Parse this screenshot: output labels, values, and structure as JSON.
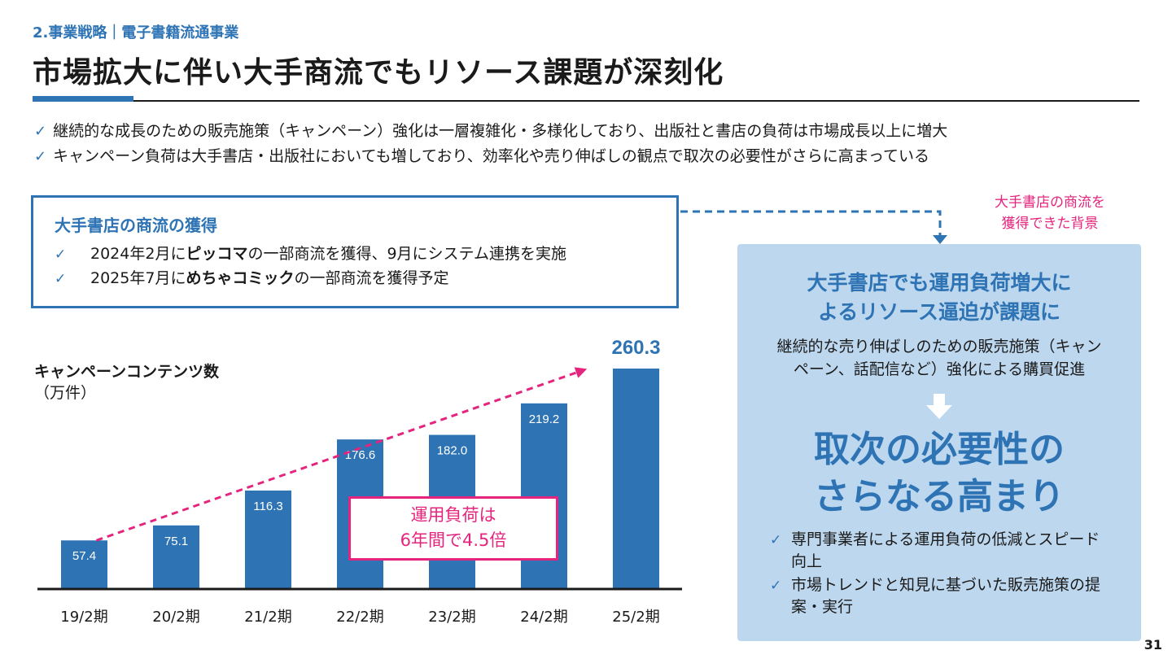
{
  "header": {
    "section": "2.事業戦略｜電子書籍流通事業",
    "title": "市場拡大に伴い大手商流でもリソース課題が深刻化"
  },
  "bullets": [
    "継続的な成長のための販売施策（キャンペーン）強化は一層複雑化・多様化しており、出版社と書店の負荷は市場成長以上に増大",
    "キャンペーン負荷は大手書店・出版社においても増しており、効率化や売り伸ばしの観点で取次の必要性がさらに高まっている"
  ],
  "check_symbol": "✓",
  "acquisition": {
    "title": "大手書店の商流の獲得",
    "items": [
      {
        "pre": "2024年2月に",
        "bold": "ピッコマ",
        "post": "の一部商流を獲得、9月にシステム連携を実施"
      },
      {
        "pre": "2025年7月に",
        "bold": "めちゃコミック",
        "post": "の一部商流を獲得予定"
      }
    ]
  },
  "reason_note": [
    "大手書店の商流を",
    "獲得できた背景"
  ],
  "chart_data": {
    "type": "bar",
    "title": "キャンペーンコンテンツ数",
    "ylabel": "（万件）",
    "categories": [
      "19/2期",
      "20/2期",
      "21/2期",
      "22/2期",
      "23/2期",
      "24/2期",
      "25/2期"
    ],
    "values": [
      57.4,
      75.1,
      116.3,
      176.6,
      182.0,
      219.2,
      260.3
    ],
    "value_labels": [
      "57.4",
      "75.1",
      "116.3",
      "176.6",
      "182.0",
      "219.2",
      "260.3"
    ],
    "ylim": [
      0,
      270
    ],
    "bar_color": "#2e74b5",
    "trend_color": "#e5247e",
    "annotation": [
      "運用負荷は",
      "6年間で4.5倍"
    ]
  },
  "right_panel": {
    "heading": [
      "大手書店でも運用負荷増大に",
      "よるリソース逼迫が課題に"
    ],
    "sub": [
      "継続的な売り伸ばしのための販売施策（キャン",
      "ペーン、話配信など）強化による購買促進"
    ],
    "big": [
      "取次の必要性の",
      "さらなる高まり"
    ],
    "items": [
      "専門事業者による運用負荷の低減とスピード向上",
      "市場トレンドと知見に基づいた販売施策の提案・実行"
    ]
  },
  "page_number": "31",
  "colors": {
    "accent": "#2e74b5",
    "pink": "#e5247e",
    "panel": "#bdd7ee"
  }
}
